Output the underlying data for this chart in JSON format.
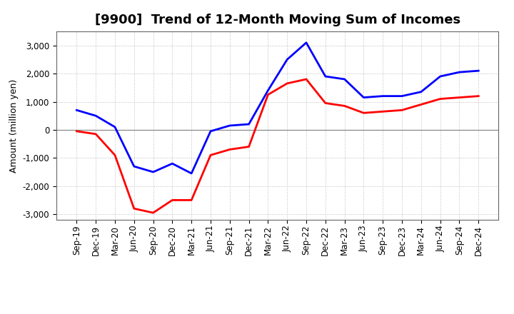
{
  "title": "[9900]  Trend of 12-Month Moving Sum of Incomes",
  "ylabel": "Amount (million yen)",
  "x_labels": [
    "Sep-19",
    "Dec-19",
    "Mar-20",
    "Jun-20",
    "Sep-20",
    "Dec-20",
    "Mar-21",
    "Jun-21",
    "Sep-21",
    "Dec-21",
    "Mar-22",
    "Jun-22",
    "Sep-22",
    "Dec-22",
    "Mar-23",
    "Jun-23",
    "Sep-23",
    "Dec-23",
    "Mar-24",
    "Jun-24",
    "Sep-24",
    "Dec-24"
  ],
  "ordinary_income": [
    700,
    500,
    100,
    -1300,
    -1500,
    -1200,
    -1550,
    -50,
    150,
    200,
    1400,
    2500,
    3100,
    1900,
    1800,
    1150,
    1200,
    1200,
    1350,
    1900,
    2050,
    2100
  ],
  "net_income": [
    -50,
    -150,
    -900,
    -2800,
    -2950,
    -2500,
    -2500,
    -900,
    -700,
    -600,
    1250,
    1650,
    1800,
    950,
    850,
    600,
    650,
    700,
    900,
    1100,
    1150,
    1200
  ],
  "ordinary_income_color": "#0000FF",
  "net_income_color": "#FF0000",
  "ylim_min": -3200,
  "ylim_max": 3500,
  "yticks": [
    -3000,
    -2000,
    -1000,
    0,
    1000,
    2000,
    3000
  ],
  "background_color": "#FFFFFF",
  "grid_color": "#BBBBBB",
  "zero_line_color": "#888888",
  "title_fontsize": 13,
  "ylabel_fontsize": 9,
  "tick_fontsize": 8.5,
  "legend_fontsize": 10,
  "line_width": 2.0
}
